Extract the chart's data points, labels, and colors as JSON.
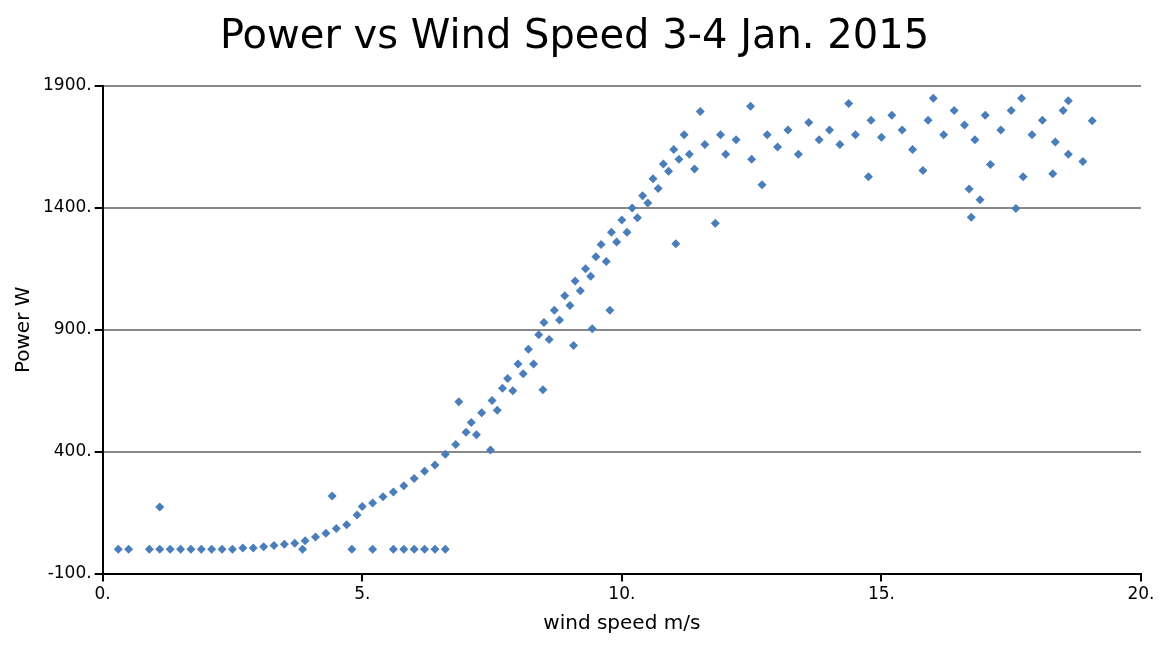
{
  "chart_data": {
    "type": "scatter",
    "title": "Power vs Wind Speed 3-4 Jan. 2015",
    "xlabel": "wind speed m/s",
    "ylabel": "Power W",
    "series": [
      {
        "color": "#4a7ebb",
        "x": [
          0.3,
          0.5,
          0.9,
          1.1,
          1.1,
          1.3,
          1.5,
          1.7,
          1.9,
          2.1,
          2.3,
          2.5,
          2.7,
          2.9,
          3.1,
          3.3,
          3.5,
          3.7,
          3.85,
          3.9,
          4.1,
          4.3,
          4.42,
          4.5,
          4.7,
          4.8,
          4.9,
          5.0,
          5.2,
          5.2,
          5.4,
          5.6,
          5.6,
          5.8,
          5.8,
          6.0,
          6.0,
          6.2,
          6.2,
          6.4,
          6.4,
          6.6,
          6.6,
          6.8,
          6.86,
          7.0,
          7.1,
          7.2,
          7.3,
          7.47,
          7.5,
          7.6,
          7.7,
          7.8,
          7.9,
          8.0,
          8.1,
          8.2,
          8.3,
          8.4,
          8.48,
          8.5,
          8.6,
          8.7,
          8.8,
          8.9,
          9.0,
          9.07,
          9.1,
          9.2,
          9.3,
          9.43,
          9.4,
          9.5,
          9.6,
          9.7,
          9.77,
          9.8,
          9.9,
          10.0,
          10.1,
          10.2,
          10.3,
          10.4,
          10.5,
          10.6,
          10.7,
          10.8,
          10.9,
          11.0,
          11.04,
          11.1,
          11.2,
          11.3,
          11.4,
          11.51,
          11.6,
          11.8,
          11.9,
          12.0,
          12.2,
          12.48,
          12.5,
          12.7,
          12.8,
          13.0,
          13.2,
          13.4,
          13.6,
          13.8,
          14.0,
          14.2,
          14.37,
          14.5,
          14.75,
          14.8,
          15.0,
          15.2,
          15.4,
          15.6,
          15.8,
          15.9,
          16.0,
          16.2,
          16.4,
          16.6,
          16.69,
          16.73,
          16.8,
          16.9,
          17.0,
          17.1,
          17.3,
          17.5,
          17.59,
          17.7,
          17.73,
          17.9,
          18.1,
          18.3,
          18.35,
          18.5,
          18.6,
          18.6,
          18.88,
          19.06
        ],
        "values": [
          0,
          0,
          0,
          0,
          173,
          0,
          0,
          0,
          0,
          0,
          0,
          0,
          5,
          5,
          10,
          15,
          20,
          25,
          0,
          35,
          50,
          65,
          218,
          85,
          100,
          0,
          140,
          175,
          0,
          190,
          215,
          0,
          235,
          0,
          260,
          0,
          290,
          0,
          320,
          0,
          345,
          0,
          390,
          430,
          605,
          480,
          520,
          470,
          560,
          407,
          610,
          570,
          660,
          700,
          650,
          760,
          720,
          820,
          760,
          880,
          654,
          930,
          860,
          980,
          940,
          1040,
          1000,
          836,
          1100,
          1060,
          1150,
          904,
          1120,
          1200,
          1250,
          1180,
          980,
          1300,
          1260,
          1350,
          1300,
          1400,
          1360,
          1450,
          1420,
          1520,
          1480,
          1580,
          1550,
          1640,
          1253,
          1600,
          1700,
          1620,
          1560,
          1795,
          1660,
          1337,
          1700,
          1620,
          1680,
          1817,
          1600,
          1495,
          1700,
          1650,
          1720,
          1620,
          1750,
          1680,
          1720,
          1660,
          1828,
          1700,
          1528,
          1760,
          1690,
          1780,
          1720,
          1640,
          1553,
          1760,
          1850,
          1700,
          1800,
          1740,
          1478,
          1362,
          1680,
          1433,
          1780,
          1578,
          1720,
          1800,
          1398,
          1850,
          1528,
          1700,
          1760,
          1540,
          1670,
          1800,
          1840,
          1620,
          1590,
          1757
        ]
      }
    ],
    "xlim": [
      0,
      20
    ],
    "ylim": [
      -100,
      1900
    ],
    "xticks": [
      {
        "value": 0,
        "label": "0."
      },
      {
        "value": 5,
        "label": "5."
      },
      {
        "value": 10,
        "label": "10."
      },
      {
        "value": 15,
        "label": "15."
      },
      {
        "value": 20,
        "label": "20."
      }
    ],
    "yticks": [
      {
        "value": -100,
        "label": "-100."
      },
      {
        "value": 400,
        "label": "400."
      },
      {
        "value": 900,
        "label": "900."
      },
      {
        "value": 1400,
        "label": "1400."
      },
      {
        "value": 1900,
        "label": "1900."
      }
    ],
    "grid": "y",
    "marker": "diamond",
    "legend": false
  }
}
